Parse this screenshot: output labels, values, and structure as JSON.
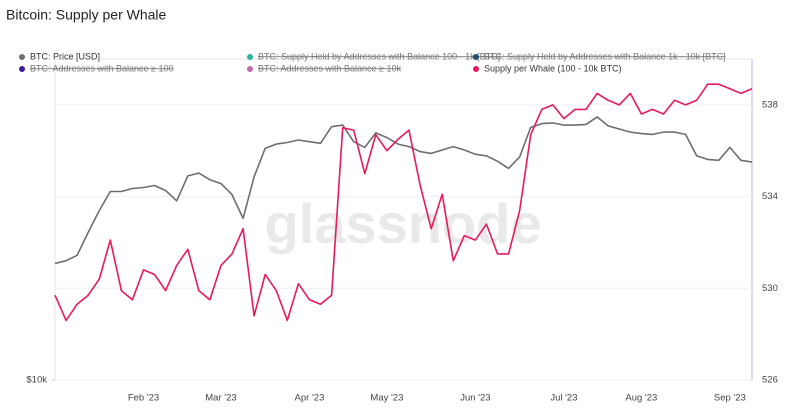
{
  "chart_data": {
    "type": "line",
    "title": "Bitcoin: Supply per Whale",
    "watermark": "glassnode",
    "categories": [
      null,
      null,
      null,
      null,
      null,
      null,
      null,
      null,
      "Feb '23",
      null,
      null,
      null,
      null,
      null,
      null,
      "Mar '23",
      null,
      null,
      null,
      null,
      null,
      null,
      null,
      "Apr '23",
      null,
      null,
      null,
      null,
      null,
      null,
      "May '23",
      null,
      null,
      null,
      null,
      null,
      null,
      null,
      "Jun '23",
      null,
      null,
      null,
      null,
      null,
      null,
      null,
      "Jul '23",
      null,
      null,
      null,
      null,
      null,
      null,
      "Aug '23",
      null,
      null,
      null,
      null,
      null,
      null,
      null,
      "Sep '23",
      null,
      null
    ],
    "ylog": true,
    "ylim": [
      10000,
      40400
    ],
    "yticks": [
      {
        "value": 10000,
        "label": "$10k"
      }
    ],
    "y2lim": [
      526,
      540
    ],
    "y2ticks": [
      526,
      530,
      534,
      538
    ],
    "grid": true,
    "series": [
      {
        "name": "BTC: Price [USD]",
        "color": "#6e6e6e",
        "axis": "y",
        "values": [
          16600,
          16800,
          17200,
          19000,
          20900,
          22700,
          22700,
          23000,
          23100,
          23300,
          22800,
          21800,
          24300,
          24600,
          23900,
          23500,
          22400,
          20200,
          24200,
          27400,
          27900,
          28100,
          28400,
          28200,
          28000,
          30100,
          30300,
          28200,
          27500,
          29300,
          28700,
          27900,
          27600,
          27000,
          26800,
          27200,
          27600,
          27200,
          26700,
          26500,
          25900,
          25100,
          26400,
          30000,
          30500,
          30600,
          30300,
          30300,
          30400,
          31400,
          30200,
          29800,
          29400,
          29200,
          29100,
          29400,
          29400,
          29100,
          26500,
          26100,
          26000,
          27500,
          26000,
          25800
        ]
      },
      {
        "name": "Supply per Whale (100 - 10k BTC)",
        "color": "#e8195d",
        "axis": "y2",
        "values": [
          529.7,
          528.6,
          529.3,
          529.7,
          530.4,
          532.1,
          529.9,
          529.5,
          530.8,
          530.6,
          529.9,
          531.0,
          531.7,
          529.9,
          529.5,
          531.0,
          531.5,
          532.6,
          528.8,
          530.6,
          529.9,
          528.6,
          530.2,
          529.5,
          529.3,
          529.7,
          537.0,
          536.9,
          535.0,
          536.7,
          536.0,
          536.5,
          536.9,
          534.5,
          532.6,
          534.1,
          531.2,
          532.3,
          532.1,
          532.8,
          531.5,
          531.5,
          533.4,
          536.7,
          537.8,
          538.0,
          537.4,
          537.8,
          537.8,
          538.5,
          538.2,
          538.0,
          538.5,
          537.6,
          537.8,
          537.6,
          538.2,
          538.0,
          538.2,
          538.9,
          538.9,
          538.7,
          538.5,
          538.7
        ]
      }
    ],
    "hidden_series": [
      {
        "name": "BTC: Supply Held by Addresses with Balance 100 - 1k [BTC]",
        "color": "#2bb3a0"
      },
      {
        "name": "BTC: Supply Held by Addresses with Balance 1k - 10k [BTC]",
        "color": "#1f4e79"
      },
      {
        "name": "BTC: Addresses with Balance ≥ 100",
        "color": "#3a1a9a"
      },
      {
        "name": "BTC: Addresses with Balance ≥ 10k",
        "color": "#c06bb0"
      }
    ]
  }
}
